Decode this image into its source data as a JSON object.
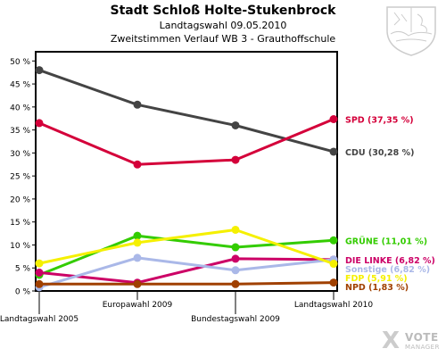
{
  "chart_data": {
    "type": "line",
    "title": "Stadt Schloß Holte-Stukenbrock",
    "subtitle_lines": [
      "Landtagswahl 09.05.2010",
      "Zweitstimmen Verlauf WB 3 - Grauthoffschule"
    ],
    "categories": [
      "Landtagswahl 2005",
      "Europawahl 2009",
      "Bundestagswahl 2009",
      "Landtagswahl 2010"
    ],
    "ylim": [
      0,
      52
    ],
    "yticks": [
      0,
      5,
      10,
      15,
      20,
      25,
      30,
      35,
      40,
      45,
      50
    ],
    "ytick_labels": [
      "0 %",
      "5 %",
      "10 %",
      "15 %",
      "20 %",
      "25 %",
      "30 %",
      "35 %",
      "40 %",
      "45 %",
      "50 %"
    ],
    "grid": false,
    "series": [
      {
        "name": "CDU",
        "label": "CDU (30,28 %)",
        "color": "#444444",
        "values": [
          48.0,
          40.5,
          36.0,
          30.28
        ]
      },
      {
        "name": "SPD",
        "label": "SPD (37,35 %)",
        "color": "#d4003a",
        "values": [
          36.5,
          27.5,
          28.5,
          37.35
        ]
      },
      {
        "name": "GRÜNE",
        "label": "GRÜNE (11,01 %)",
        "color": "#33cc00",
        "values": [
          3.5,
          12.0,
          9.5,
          11.01
        ]
      },
      {
        "name": "DIE LINKE",
        "label": "DIE LINKE (6,82 %)",
        "color": "#cc0066",
        "values": [
          4.0,
          1.8,
          7.0,
          6.82
        ]
      },
      {
        "name": "Sonstige",
        "label": "Sonstige (6,82 %)",
        "color": "#aab8e8",
        "values": [
          0.8,
          7.2,
          4.5,
          6.82
        ]
      },
      {
        "name": "FDP",
        "label": "FDP (5,91 %)",
        "color": "#f5f000",
        "values": [
          6.0,
          10.5,
          13.3,
          5.91
        ]
      },
      {
        "name": "NPD",
        "label": "NPD (1,83 %)",
        "color": "#a04000",
        "values": [
          1.5,
          1.5,
          1.5,
          1.83
        ]
      }
    ]
  },
  "branding": {
    "logo_vote": "VOTE",
    "logo_manager": "MANAGER",
    "logo_mark": "X"
  },
  "colors": {
    "axis": "#000000",
    "watermark": "#cccccc"
  }
}
